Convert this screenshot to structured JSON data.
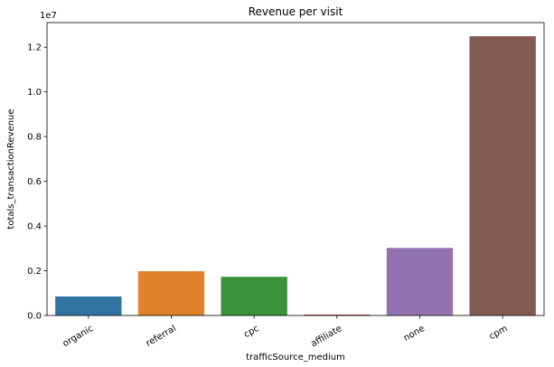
{
  "chart_data": {
    "type": "bar",
    "title": "Revenue per visit",
    "xlabel": "trafficSource_medium",
    "ylabel": "totals_transactionRevenue",
    "offset_text": "1e7",
    "categories": [
      "organic",
      "referral",
      "cpc",
      "affiliate",
      "none",
      "cpm"
    ],
    "values": [
      0.085,
      0.198,
      0.173,
      0.004,
      0.302,
      1.249
    ],
    "value_unit_multiplier": 10000000,
    "ylim": [
      0,
      1.31
    ],
    "yticks": [
      0.0,
      0.2,
      0.4,
      0.6,
      0.8,
      1.0,
      1.2
    ],
    "ytick_labels": [
      "0.0",
      "0.2",
      "0.4",
      "0.6",
      "0.8",
      "1.0",
      "1.2"
    ],
    "colors": [
      "#3274a1",
      "#e1812c",
      "#3a923a",
      "#c03d3e",
      "#9372b2",
      "#845b53"
    ],
    "grid": false,
    "legend": "none"
  }
}
